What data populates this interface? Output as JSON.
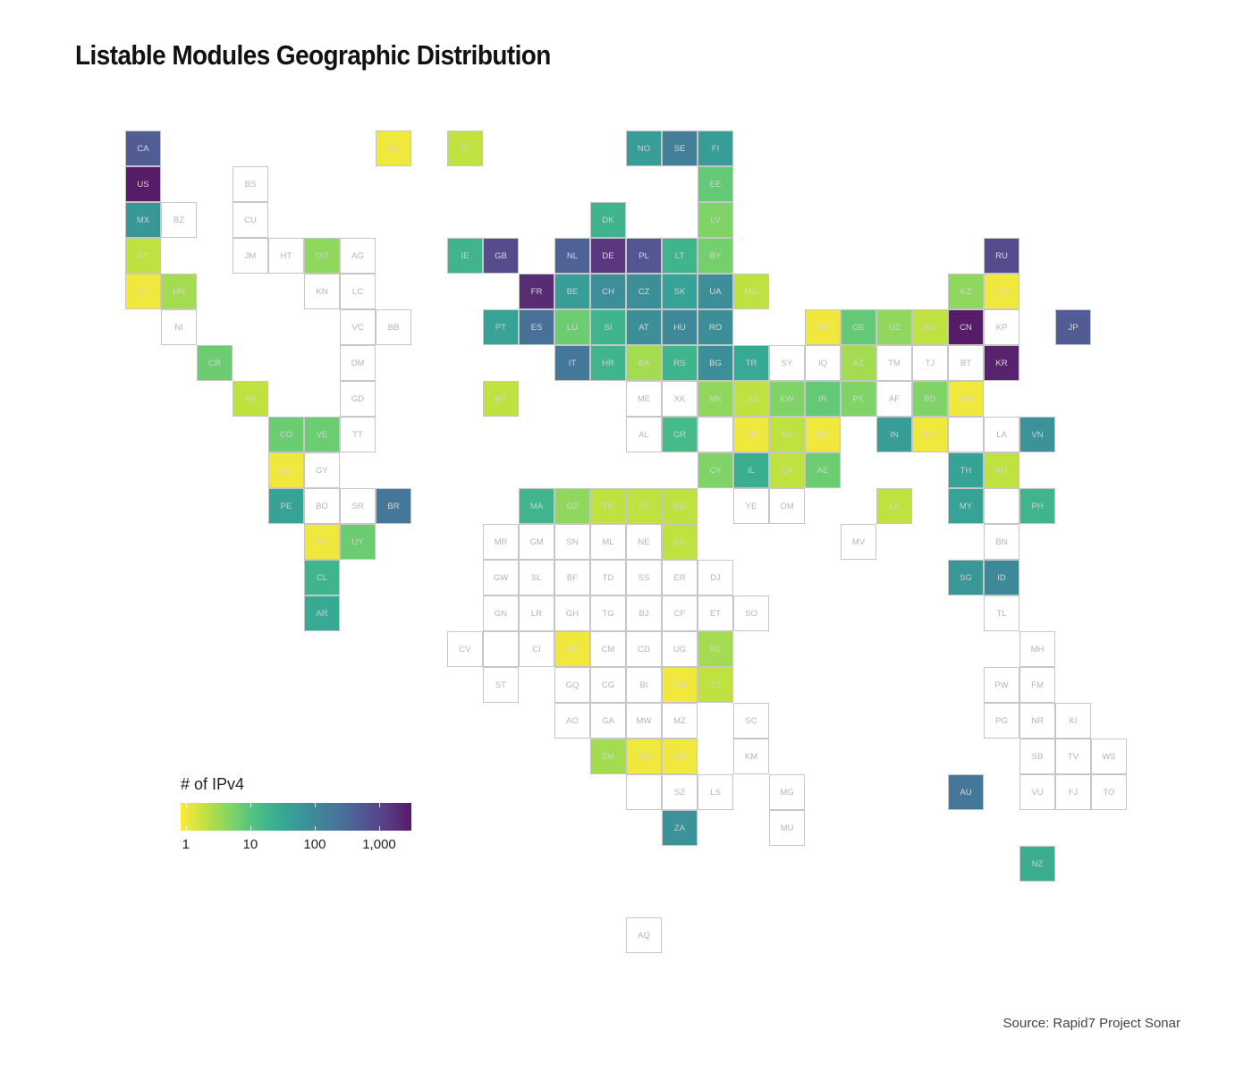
{
  "title": "Listable Modules Geographic Distribution",
  "source": "Source: Rapid7 Project Sonar",
  "chart_data": {
    "type": "heatmap",
    "subtype": "tile-grid-map",
    "title": "Listable Modules Geographic Distribution",
    "color_scale": {
      "name": "viridis (reversed)",
      "log": true,
      "limits": [
        0.83,
        3160
      ],
      "missing_color": "#ffffff"
    },
    "legend": {
      "title": "# of IPv4",
      "placement": "bottom-left",
      "ticks": [
        {
          "value": 1,
          "label": "1"
        },
        {
          "value": 10,
          "label": "10"
        },
        {
          "value": 100,
          "label": "100"
        },
        {
          "value": 1000,
          "label": "1,000"
        }
      ]
    },
    "tiles": [
      {
        "code": "CA",
        "value": 500
      },
      {
        "code": "GL",
        "value": 1
      },
      {
        "code": "IS",
        "value": 2
      },
      {
        "code": "NO",
        "value": 50
      },
      {
        "code": "SE",
        "value": 150
      },
      {
        "code": "FI",
        "value": 50
      },
      {
        "code": "US",
        "value": 3000
      },
      {
        "code": "BS",
        "value": null
      },
      {
        "code": "EE",
        "value": 8
      },
      {
        "code": "MX",
        "value": 60
      },
      {
        "code": "BZ",
        "value": null
      },
      {
        "code": "CU",
        "value": null
      },
      {
        "code": "DK",
        "value": 20
      },
      {
        "code": "LV",
        "value": 5
      },
      {
        "code": "GT",
        "value": 2
      },
      {
        "code": "JM",
        "value": null
      },
      {
        "code": "HT",
        "value": null
      },
      {
        "code": "DO",
        "value": 4
      },
      {
        "code": "AG",
        "value": null
      },
      {
        "code": "IE",
        "value": 20
      },
      {
        "code": "GB",
        "value": 800
      },
      {
        "code": "NL",
        "value": 400
      },
      {
        "code": "DE",
        "value": 1500
      },
      {
        "code": "PL",
        "value": 600
      },
      {
        "code": "LT",
        "value": 20
      },
      {
        "code": "BY",
        "value": 6
      },
      {
        "code": "RU",
        "value": 800
      },
      {
        "code": "SV",
        "value": 1
      },
      {
        "code": "HN",
        "value": 3
      },
      {
        "code": "KN",
        "value": null
      },
      {
        "code": "LC",
        "value": null
      },
      {
        "code": "FR",
        "value": 2000
      },
      {
        "code": "BE",
        "value": 50
      },
      {
        "code": "CH",
        "value": 80
      },
      {
        "code": "CZ",
        "value": 80
      },
      {
        "code": "SK",
        "value": 40
      },
      {
        "code": "UA",
        "value": 80
      },
      {
        "code": "MD",
        "value": 2
      },
      {
        "code": "KZ",
        "value": 4
      },
      {
        "code": "MN",
        "value": 1
      },
      {
        "code": "NI",
        "value": null
      },
      {
        "code": "VC",
        "value": null
      },
      {
        "code": "BB",
        "value": null
      },
      {
        "code": "PT",
        "value": 40
      },
      {
        "code": "ES",
        "value": 250
      },
      {
        "code": "LU",
        "value": 7
      },
      {
        "code": "SI",
        "value": 20
      },
      {
        "code": "AT",
        "value": 80
      },
      {
        "code": "HU",
        "value": 100
      },
      {
        "code": "RO",
        "value": 80
      },
      {
        "code": "AM",
        "value": 1
      },
      {
        "code": "GE",
        "value": 8
      },
      {
        "code": "UZ",
        "value": 4
      },
      {
        "code": "KG",
        "value": 2
      },
      {
        "code": "CN",
        "value": 3000
      },
      {
        "code": "KP",
        "value": null
      },
      {
        "code": "JP",
        "value": 500
      },
      {
        "code": "CR",
        "value": 7
      },
      {
        "code": "DM",
        "value": null
      },
      {
        "code": "IT",
        "value": 200
      },
      {
        "code": "HR",
        "value": 20
      },
      {
        "code": "BA",
        "value": 3
      },
      {
        "code": "RS",
        "value": 20
      },
      {
        "code": "BG",
        "value": 80
      },
      {
        "code": "TR",
        "value": 30
      },
      {
        "code": "SY",
        "value": null
      },
      {
        "code": "IQ",
        "value": null
      },
      {
        "code": "AZ",
        "value": 3
      },
      {
        "code": "TM",
        "value": null
      },
      {
        "code": "TJ",
        "value": null
      },
      {
        "code": "BT",
        "value": null
      },
      {
        "code": "KR",
        "value": 2500
      },
      {
        "code": "PA",
        "value": 2
      },
      {
        "code": "GD",
        "value": null
      },
      {
        "code": "MT",
        "value": 2
      },
      {
        "code": "ME",
        "value": null
      },
      {
        "code": "XK",
        "value": null
      },
      {
        "code": "MK",
        "value": 4
      },
      {
        "code": "JO",
        "value": 2
      },
      {
        "code": "KW",
        "value": 5
      },
      {
        "code": "IR",
        "value": 8
      },
      {
        "code": "PK",
        "value": 5
      },
      {
        "code": "AF",
        "value": null
      },
      {
        "code": "BD",
        "value": 5
      },
      {
        "code": "MM",
        "value": 1
      },
      {
        "code": "CO",
        "value": 7
      },
      {
        "code": "VE",
        "value": 7
      },
      {
        "code": "TT",
        "value": null
      },
      {
        "code": "AL",
        "value": null
      },
      {
        "code": "GR",
        "value": 15
      },
      {
        "code": "LB",
        "value": 1
      },
      {
        "code": "SA",
        "value": 2
      },
      {
        "code": "BH",
        "value": 1
      },
      {
        "code": "IN",
        "value": 50
      },
      {
        "code": "NP",
        "value": 1
      },
      {
        "code": "LA",
        "value": null
      },
      {
        "code": "VN",
        "value": 70
      },
      {
        "code": "EC",
        "value": 1
      },
      {
        "code": "GY",
        "value": null
      },
      {
        "code": "CY",
        "value": 5
      },
      {
        "code": "IL",
        "value": 25
      },
      {
        "code": "QA",
        "value": 2
      },
      {
        "code": "AE",
        "value": 7
      },
      {
        "code": "TH",
        "value": 40
      },
      {
        "code": "KH",
        "value": 2
      },
      {
        "code": "PE",
        "value": 40
      },
      {
        "code": "BO",
        "value": null
      },
      {
        "code": "SR",
        "value": null
      },
      {
        "code": "BR",
        "value": 200
      },
      {
        "code": "MA",
        "value": 20
      },
      {
        "code": "DZ",
        "value": 4
      },
      {
        "code": "TN",
        "value": 2
      },
      {
        "code": "LY",
        "value": 2
      },
      {
        "code": "EG",
        "value": 2
      },
      {
        "code": "YE",
        "value": null
      },
      {
        "code": "OM",
        "value": null
      },
      {
        "code": "LK",
        "value": 2
      },
      {
        "code": "MY",
        "value": 40
      },
      {
        "code": "PH",
        "value": 20
      },
      {
        "code": "PY",
        "value": 1
      },
      {
        "code": "UY",
        "value": 7
      },
      {
        "code": "MR",
        "value": null
      },
      {
        "code": "GM",
        "value": null
      },
      {
        "code": "SN",
        "value": null
      },
      {
        "code": "ML",
        "value": null
      },
      {
        "code": "NE",
        "value": null
      },
      {
        "code": "SD",
        "value": 2
      },
      {
        "code": "MV",
        "value": null
      },
      {
        "code": "BN",
        "value": null
      },
      {
        "code": "CL",
        "value": 20
      },
      {
        "code": "GW",
        "value": null
      },
      {
        "code": "SL",
        "value": null
      },
      {
        "code": "BF",
        "value": null
      },
      {
        "code": "TD",
        "value": null
      },
      {
        "code": "SS",
        "value": null
      },
      {
        "code": "ER",
        "value": null
      },
      {
        "code": "DJ",
        "value": null
      },
      {
        "code": "SG",
        "value": 60
      },
      {
        "code": "ID",
        "value": 100
      },
      {
        "code": "AR",
        "value": 30
      },
      {
        "code": "GN",
        "value": null
      },
      {
        "code": "LR",
        "value": null
      },
      {
        "code": "GH",
        "value": null
      },
      {
        "code": "TG",
        "value": null
      },
      {
        "code": "BJ",
        "value": null
      },
      {
        "code": "CF",
        "value": null
      },
      {
        "code": "ET",
        "value": null
      },
      {
        "code": "SO",
        "value": null
      },
      {
        "code": "TL",
        "value": null
      },
      {
        "code": "CV",
        "value": null
      },
      {
        "code": "CI",
        "value": null
      },
      {
        "code": "NG",
        "value": 1
      },
      {
        "code": "CM",
        "value": null
      },
      {
        "code": "CD",
        "value": null
      },
      {
        "code": "UG",
        "value": null
      },
      {
        "code": "KE",
        "value": 3
      },
      {
        "code": "MH",
        "value": null
      },
      {
        "code": "ST",
        "value": null
      },
      {
        "code": "GQ",
        "value": null
      },
      {
        "code": "CG",
        "value": null
      },
      {
        "code": "BI",
        "value": null
      },
      {
        "code": "RW",
        "value": 1
      },
      {
        "code": "TZ",
        "value": 2
      },
      {
        "code": "PW",
        "value": null
      },
      {
        "code": "FM",
        "value": null
      },
      {
        "code": "AO",
        "value": null
      },
      {
        "code": "GA",
        "value": null
      },
      {
        "code": "MW",
        "value": null
      },
      {
        "code": "MZ",
        "value": null
      },
      {
        "code": "SC",
        "value": null
      },
      {
        "code": "PG",
        "value": null
      },
      {
        "code": "NR",
        "value": null
      },
      {
        "code": "KI",
        "value": null
      },
      {
        "code": "ZM",
        "value": 3
      },
      {
        "code": "BW",
        "value": 1
      },
      {
        "code": "ZW",
        "value": 1
      },
      {
        "code": "KM",
        "value": null
      },
      {
        "code": "SB",
        "value": null
      },
      {
        "code": "TV",
        "value": null
      },
      {
        "code": "WS",
        "value": null
      },
      {
        "code": "SZ",
        "value": null
      },
      {
        "code": "LS",
        "value": null
      },
      {
        "code": "MG",
        "value": null
      },
      {
        "code": "AU",
        "value": 200
      },
      {
        "code": "VU",
        "value": null
      },
      {
        "code": "FJ",
        "value": null
      },
      {
        "code": "TO",
        "value": null
      },
      {
        "code": "ZA",
        "value": 70
      },
      {
        "code": "MU",
        "value": null
      },
      {
        "code": "NZ",
        "value": 25
      },
      {
        "code": "AQ",
        "value": null
      }
    ]
  }
}
